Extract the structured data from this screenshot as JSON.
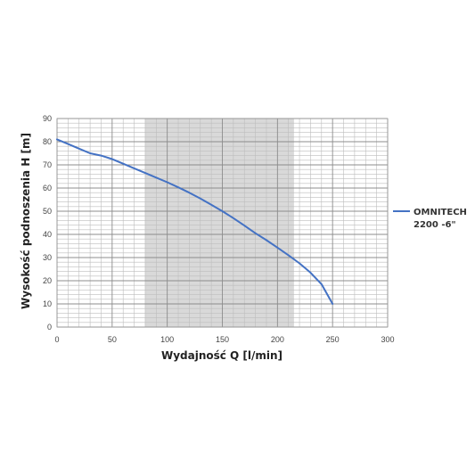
{
  "chart_data": {
    "type": "line",
    "xlabel": "Wydajność Q [l/min]",
    "ylabel": "Wysokość podnoszenia H [m]",
    "xlim": [
      0,
      300
    ],
    "ylim": [
      0,
      90
    ],
    "x_ticks": [
      "0",
      "50",
      "100",
      "150",
      "200",
      "250",
      "300"
    ],
    "y_ticks": [
      "0",
      "10",
      "20",
      "30",
      "40",
      "50",
      "60",
      "70",
      "80",
      "90"
    ],
    "grid": true,
    "minor_grid": true,
    "highlight_band": {
      "x_from": 80,
      "x_to": 215,
      "color": "#d9d9d9"
    },
    "legend_position": "right",
    "series": [
      {
        "name_line1": "OMNITECH",
        "name_line2": "2200 -6\"",
        "color": "#4472c4",
        "x": [
          0,
          10,
          20,
          30,
          40,
          50,
          60,
          70,
          80,
          90,
          100,
          110,
          120,
          130,
          140,
          150,
          160,
          170,
          180,
          190,
          200,
          210,
          220,
          230,
          240,
          250
        ],
        "y": [
          81,
          79,
          77,
          75,
          74,
          72.5,
          70.5,
          68.5,
          66.5,
          64.5,
          62.5,
          60.3,
          58,
          55.5,
          52.8,
          50,
          47,
          43.8,
          40.5,
          37.5,
          34.3,
          31,
          27.5,
          23.5,
          18.5,
          10
        ]
      }
    ]
  }
}
